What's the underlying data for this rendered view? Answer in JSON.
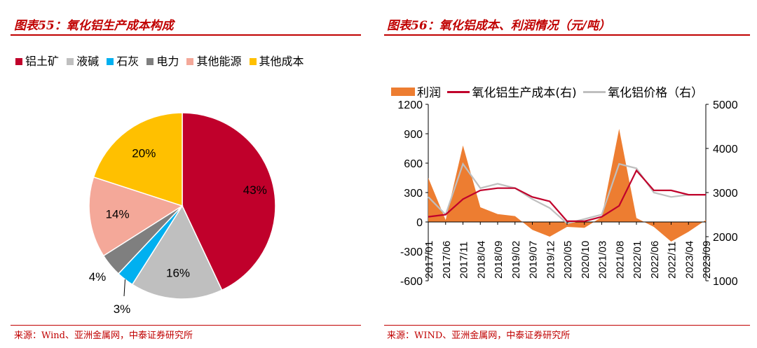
{
  "left": {
    "title": "图表55：氧化铝生产成本构成",
    "source": "来源：Wind、亚洲金属网，中泰证券研究所",
    "legend": [
      {
        "label": "铝土矿",
        "color": "#c0002b"
      },
      {
        "label": "液碱",
        "color": "#bfbfbf"
      },
      {
        "label": "石灰",
        "color": "#00b0f0"
      },
      {
        "label": "电力",
        "color": "#7f7f7f"
      },
      {
        "label": "其他能源",
        "color": "#f4a899"
      },
      {
        "label": "其他成本",
        "color": "#ffc000"
      }
    ]
  },
  "right": {
    "title": "图表56：氧化铝成本、利润情况（元/吨）",
    "source": "来源：WIND、亚洲金属网，中泰证券研究所",
    "legend": {
      "profit": "利润",
      "cost": "氧化铝生产成本(右)",
      "price": "氧化铝价格（右）"
    }
  },
  "chart_data": [
    {
      "type": "pie",
      "categories": [
        "铝土矿",
        "液碱",
        "石灰",
        "电力",
        "其他能源",
        "其他成本"
      ],
      "values": [
        43,
        16,
        3,
        4,
        14,
        20
      ],
      "labels": [
        "43%",
        "16%",
        "3%",
        "4%",
        "14%",
        "20%"
      ],
      "colors": [
        "#c0002b",
        "#bfbfbf",
        "#00b0f0",
        "#7f7f7f",
        "#f4a899",
        "#ffc000"
      ],
      "legend_position": "top"
    },
    {
      "type": "line",
      "x": [
        "2017/01",
        "2017/06",
        "2017/11",
        "2018/04",
        "2018/09",
        "2019/02",
        "2019/07",
        "2019/12",
        "2020/05",
        "2020/10",
        "2021/03",
        "2021/08",
        "2022/01",
        "2022/06",
        "2022/11",
        "2023/04",
        "2023/09"
      ],
      "x_tick_labels": [
        "2017/01",
        "2017/06",
        "2017/11",
        "2018/04",
        "2018/09",
        "2019/02",
        "2019/07",
        "2019/12",
        "2020/05",
        "2020/10",
        "2021/03",
        "2021/08",
        "2022/01",
        "2022/06",
        "2022/11",
        "2023/04",
        "2023/09"
      ],
      "series": [
        {
          "name": "利润",
          "type": "area",
          "axis": "left",
          "color": "#ed7d31",
          "values": [
            450,
            20,
            780,
            150,
            80,
            60,
            -80,
            -150,
            -50,
            -60,
            50,
            950,
            40,
            -50,
            -200,
            -100,
            20
          ]
        },
        {
          "name": "氧化铝生产成本(右)",
          "type": "line",
          "axis": "right",
          "color": "#c0002b",
          "values": [
            2450,
            2500,
            2850,
            3050,
            3100,
            3100,
            2900,
            2800,
            2350,
            2350,
            2450,
            2700,
            3500,
            3050,
            3050,
            2950,
            2950
          ]
        },
        {
          "name": "氧化铝价格（右）",
          "type": "line",
          "axis": "right",
          "color": "#bfbfbf",
          "values": [
            2900,
            2500,
            3650,
            3100,
            3200,
            3100,
            2850,
            2650,
            2300,
            2400,
            2500,
            3650,
            3550,
            3000,
            2900,
            2950,
            2950
          ]
        }
      ],
      "yleft": {
        "lim": [
          -600,
          1200
        ],
        "ticks": [
          "-600",
          "-300",
          "0",
          "300",
          "600",
          "900",
          "1200"
        ]
      },
      "yright": {
        "lim": [
          1000,
          5000
        ],
        "ticks": [
          "1000",
          "2000",
          "3000",
          "4000",
          "5000"
        ]
      },
      "legend_position": "top"
    }
  ]
}
